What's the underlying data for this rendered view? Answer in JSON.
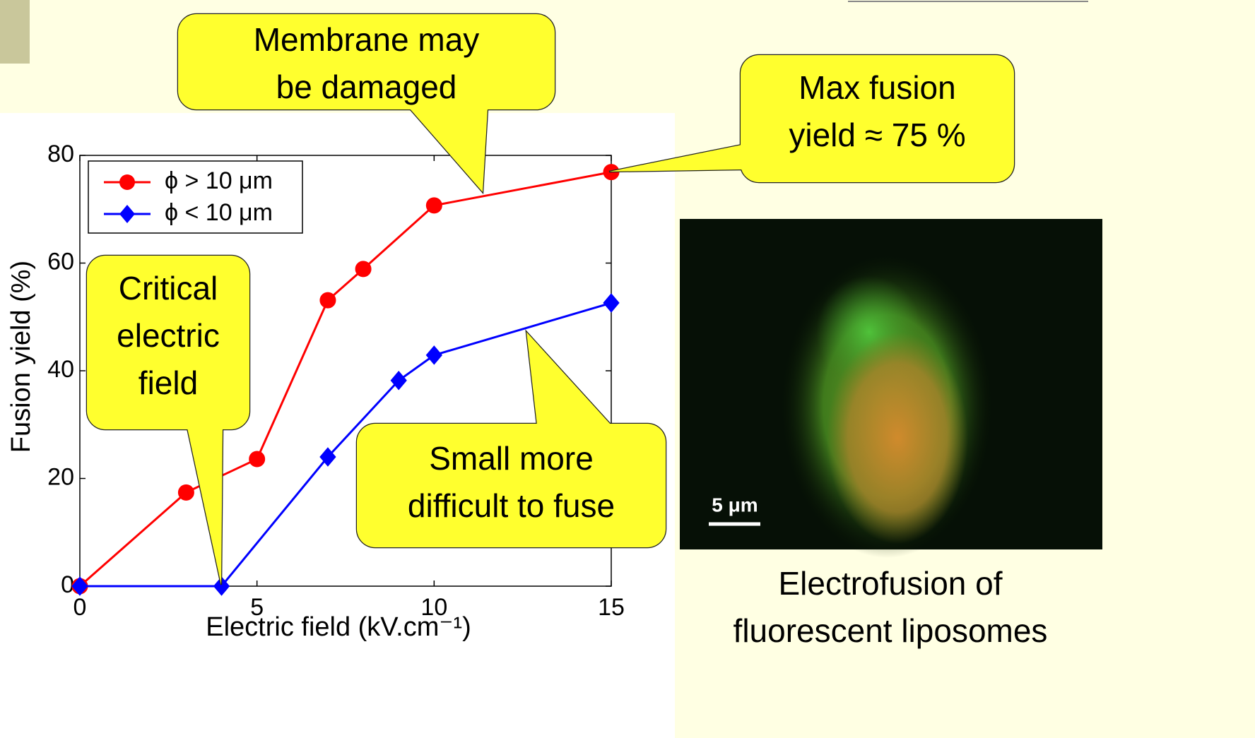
{
  "chart_data": {
    "type": "line",
    "x_label": "Electric field (kV.cm⁻¹)",
    "y_label": "Fusion yield (%)",
    "xlim": [
      0,
      15
    ],
    "xticks": [
      0,
      5,
      10,
      15
    ],
    "ylim": [
      0,
      80
    ],
    "yticks": [
      0,
      20,
      40,
      60,
      80
    ],
    "legend": "upper left",
    "series": [
      {
        "name": "ϕ > 10 μm",
        "color": "#ff0000",
        "marker": "circle",
        "x": [
          0,
          3,
          5,
          7,
          8,
          10,
          15
        ],
        "values": [
          0,
          17.4,
          23.6,
          53.1,
          58.9,
          70.7,
          76.9
        ]
      },
      {
        "name": "ϕ < 10 μm",
        "color": "#0000ff",
        "marker": "diamond",
        "x": [
          0,
          4,
          7,
          9,
          10,
          15
        ],
        "values": [
          0,
          0,
          24,
          38.2,
          42.9,
          52.6
        ]
      }
    ],
    "annotations": [
      {
        "lines": [
          "Membrane may",
          "be damaged"
        ]
      },
      {
        "lines": [
          "Max fusion",
          "yield ≈ 75 %"
        ]
      },
      {
        "lines": [
          "Critical",
          "electric",
          "field"
        ]
      },
      {
        "lines": [
          "Small more",
          "difficult to fuse"
        ]
      }
    ]
  },
  "image": {
    "scale_label": "5 μm",
    "caption": [
      "Electrofusion of",
      "fluorescent liposomes"
    ]
  }
}
